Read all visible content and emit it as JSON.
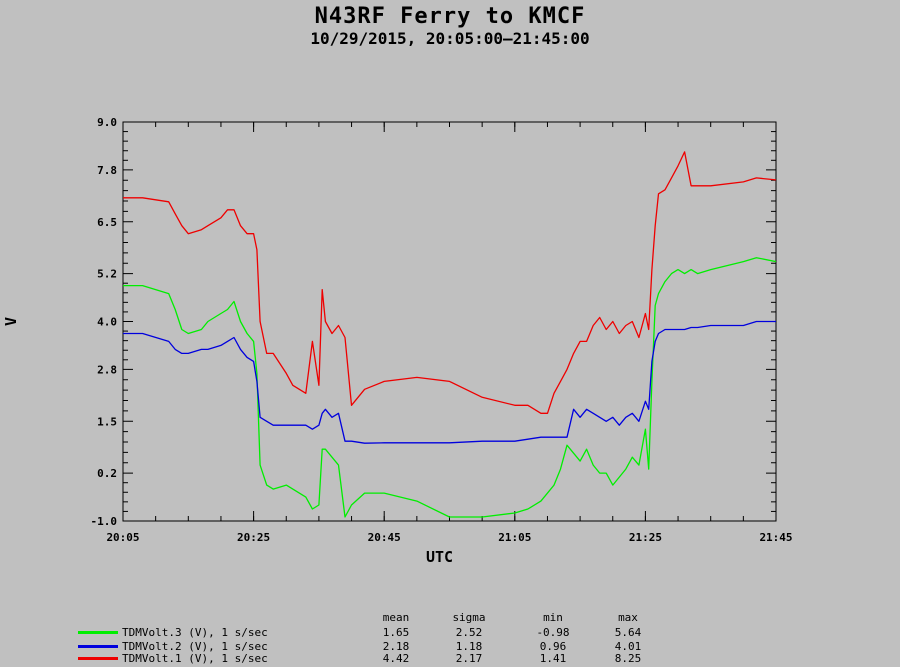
{
  "header": {
    "title": "N43RF Ferry to KMCF",
    "subtitle": "10/29/2015, 20:05:00–21:45:00"
  },
  "stats_table": {
    "columns": [
      "mean",
      "sigma",
      "min",
      "max"
    ],
    "rows": [
      {
        "label": "TDMVolt.3 (V), 1 s/sec",
        "color": "#00ee00",
        "mean": "1.65",
        "sigma": "2.52",
        "min": "-0.98",
        "max": "5.64"
      },
      {
        "label": "TDMVolt.2 (V), 1 s/sec",
        "color": "#0000dd",
        "mean": "2.18",
        "sigma": "1.18",
        "min": "0.96",
        "max": "4.01"
      },
      {
        "label": "TDMVolt.1 (V), 1 s/sec",
        "color": "#ee0000",
        "mean": "4.42",
        "sigma": "2.17",
        "min": "1.41",
        "max": "8.25"
      }
    ]
  },
  "chart_data": {
    "type": "line",
    "xlabel": "UTC",
    "ylabel": "V",
    "xlim": [
      "20:05",
      "21:45"
    ],
    "ylim": [
      -1.0,
      9.0
    ],
    "x_ticks": [
      "20:05",
      "20:25",
      "20:45",
      "21:05",
      "21:25",
      "21:45"
    ],
    "y_ticks": [
      "-1.0",
      "0.2",
      "1.5",
      "2.8",
      "4.0",
      "5.2",
      "6.5",
      "7.8",
      "9.0"
    ],
    "series": [
      {
        "name": "TDMVolt.3 (V), 1 s/sec",
        "color": "#00ee00",
        "x": [
          "20:05",
          "20:08",
          "20:12",
          "20:13",
          "20:14",
          "20:15",
          "20:17",
          "20:18",
          "20:20",
          "20:21",
          "20:22",
          "20:23",
          "20:24",
          "20:25",
          "20:25:30",
          "20:26",
          "20:27",
          "20:28",
          "20:30",
          "20:31",
          "20:33",
          "20:34",
          "20:35",
          "20:35:30",
          "20:36",
          "20:37",
          "20:38",
          "20:39",
          "20:40",
          "20:42",
          "20:45",
          "20:50",
          "20:55",
          "21:00",
          "21:05",
          "21:07",
          "21:09",
          "21:10",
          "21:11",
          "21:12",
          "21:13",
          "21:14",
          "21:15",
          "21:16",
          "21:17",
          "21:18",
          "21:19",
          "21:20",
          "21:21",
          "21:22",
          "21:23",
          "21:24",
          "21:25",
          "21:25:30",
          "21:26",
          "21:26:30",
          "21:27",
          "21:28",
          "21:29",
          "21:30",
          "21:31",
          "21:32",
          "21:33",
          "21:35",
          "21:40",
          "21:42",
          "21:45"
        ],
        "y": [
          4.9,
          4.9,
          4.7,
          4.3,
          3.8,
          3.7,
          3.8,
          4.0,
          4.2,
          4.3,
          4.5,
          4.0,
          3.7,
          3.5,
          2.7,
          0.4,
          -0.1,
          -0.2,
          -0.1,
          -0.2,
          -0.4,
          -0.7,
          -0.6,
          0.8,
          0.8,
          0.6,
          0.4,
          -0.9,
          -0.6,
          -0.3,
          -0.3,
          -0.5,
          -0.9,
          -0.9,
          -0.8,
          -0.7,
          -0.5,
          -0.3,
          -0.1,
          0.3,
          0.9,
          0.7,
          0.5,
          0.8,
          0.4,
          0.2,
          0.2,
          -0.1,
          0.1,
          0.3,
          0.6,
          0.4,
          1.3,
          0.3,
          2.5,
          4.4,
          4.7,
          5.0,
          5.2,
          5.3,
          5.2,
          5.3,
          5.2,
          5.3,
          5.5,
          5.6,
          5.5
        ]
      },
      {
        "name": "TDMVolt.2 (V), 1 s/sec",
        "color": "#0000dd",
        "x": [
          "20:05",
          "20:08",
          "20:12",
          "20:13",
          "20:14",
          "20:15",
          "20:17",
          "20:18",
          "20:20",
          "20:21",
          "20:22",
          "20:23",
          "20:24",
          "20:25",
          "20:25:30",
          "20:26",
          "20:27",
          "20:28",
          "20:30",
          "20:31",
          "20:33",
          "20:34",
          "20:35",
          "20:35:30",
          "20:36",
          "20:37",
          "20:38",
          "20:39",
          "20:40",
          "20:42",
          "20:45",
          "20:50",
          "20:55",
          "21:00",
          "21:05",
          "21:07",
          "21:09",
          "21:10",
          "21:11",
          "21:12",
          "21:13",
          "21:14",
          "21:15",
          "21:16",
          "21:17",
          "21:18",
          "21:19",
          "21:20",
          "21:21",
          "21:22",
          "21:23",
          "21:24",
          "21:25",
          "21:25:30",
          "21:26",
          "21:26:30",
          "21:27",
          "21:28",
          "21:29",
          "21:30",
          "21:31",
          "21:32",
          "21:33",
          "21:35",
          "21:40",
          "21:42",
          "21:45"
        ],
        "y": [
          3.7,
          3.7,
          3.5,
          3.3,
          3.2,
          3.2,
          3.3,
          3.3,
          3.4,
          3.5,
          3.6,
          3.3,
          3.1,
          3.0,
          2.5,
          1.6,
          1.5,
          1.4,
          1.4,
          1.4,
          1.4,
          1.3,
          1.4,
          1.7,
          1.8,
          1.6,
          1.7,
          1.0,
          1.0,
          0.95,
          0.96,
          0.96,
          0.96,
          1.0,
          1.0,
          1.05,
          1.1,
          1.1,
          1.1,
          1.1,
          1.1,
          1.8,
          1.6,
          1.8,
          1.7,
          1.6,
          1.5,
          1.6,
          1.4,
          1.6,
          1.7,
          1.5,
          2.0,
          1.8,
          3.0,
          3.5,
          3.7,
          3.8,
          3.8,
          3.8,
          3.8,
          3.85,
          3.85,
          3.9,
          3.9,
          4.0,
          4.0
        ]
      },
      {
        "name": "TDMVolt.1 (V), 1 s/sec",
        "color": "#ee0000",
        "x": [
          "20:05",
          "20:08",
          "20:12",
          "20:13",
          "20:14",
          "20:15",
          "20:17",
          "20:18",
          "20:20",
          "20:21",
          "20:22",
          "20:23",
          "20:24",
          "20:25",
          "20:25:30",
          "20:26",
          "20:27",
          "20:28",
          "20:30",
          "20:31",
          "20:33",
          "20:34",
          "20:35",
          "20:35:30",
          "20:36",
          "20:37",
          "20:38",
          "20:39",
          "20:40",
          "20:42",
          "20:45",
          "20:50",
          "20:55",
          "21:00",
          "21:05",
          "21:07",
          "21:09",
          "21:10",
          "21:11",
          "21:12",
          "21:13",
          "21:14",
          "21:15",
          "21:16",
          "21:17",
          "21:18",
          "21:19",
          "21:20",
          "21:21",
          "21:22",
          "21:23",
          "21:24",
          "21:25",
          "21:25:30",
          "21:26",
          "21:26:30",
          "21:27",
          "21:28",
          "21:29",
          "21:30",
          "21:31",
          "21:32",
          "21:33",
          "21:35",
          "21:40",
          "21:42",
          "21:45"
        ],
        "y": [
          7.1,
          7.1,
          7.0,
          6.7,
          6.4,
          6.2,
          6.3,
          6.4,
          6.6,
          6.8,
          6.8,
          6.4,
          6.2,
          6.2,
          5.8,
          4.0,
          3.2,
          3.2,
          2.7,
          2.4,
          2.2,
          3.5,
          2.4,
          4.8,
          4.0,
          3.7,
          3.9,
          3.6,
          1.9,
          2.3,
          2.5,
          2.6,
          2.5,
          2.1,
          1.9,
          1.9,
          1.7,
          1.7,
          2.2,
          2.5,
          2.8,
          3.2,
          3.5,
          3.5,
          3.9,
          4.1,
          3.8,
          4.0,
          3.7,
          3.9,
          4.0,
          3.6,
          4.2,
          3.8,
          5.3,
          6.4,
          7.2,
          7.3,
          7.6,
          7.9,
          8.25,
          7.4,
          7.4,
          7.4,
          7.5,
          7.6,
          7.55
        ]
      }
    ]
  }
}
